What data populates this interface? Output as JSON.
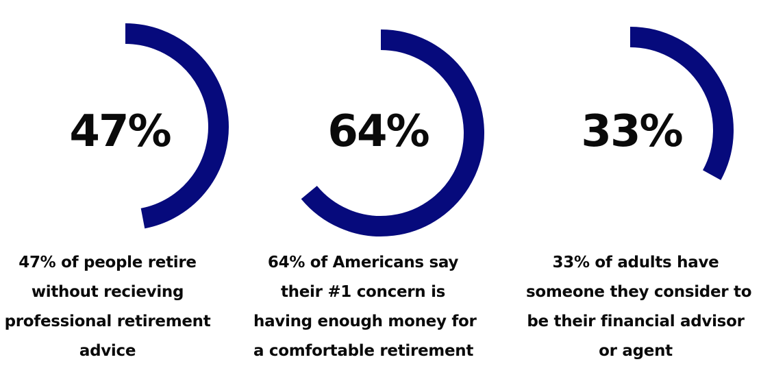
{
  "colors": {
    "arc": "#060a7c",
    "text": "#0a0a0a",
    "background": "#ffffff"
  },
  "chart_data": [
    {
      "type": "pie",
      "value_label": "47%",
      "percent": 47,
      "caption_lines": [
        "47% of people retire",
        "without recieving",
        "professional retirement",
        "advice"
      ]
    },
    {
      "type": "pie",
      "value_label": "64%",
      "percent": 64,
      "caption_lines": [
        "64% of Americans say",
        "their #1 concern is",
        "having enough money for",
        "a comfortable retirement"
      ]
    },
    {
      "type": "pie",
      "value_label": "33%",
      "percent": 33,
      "caption_lines": [
        "33% of adults have",
        "someone they consider to",
        "be their financial advisor",
        "or agent"
      ]
    }
  ]
}
